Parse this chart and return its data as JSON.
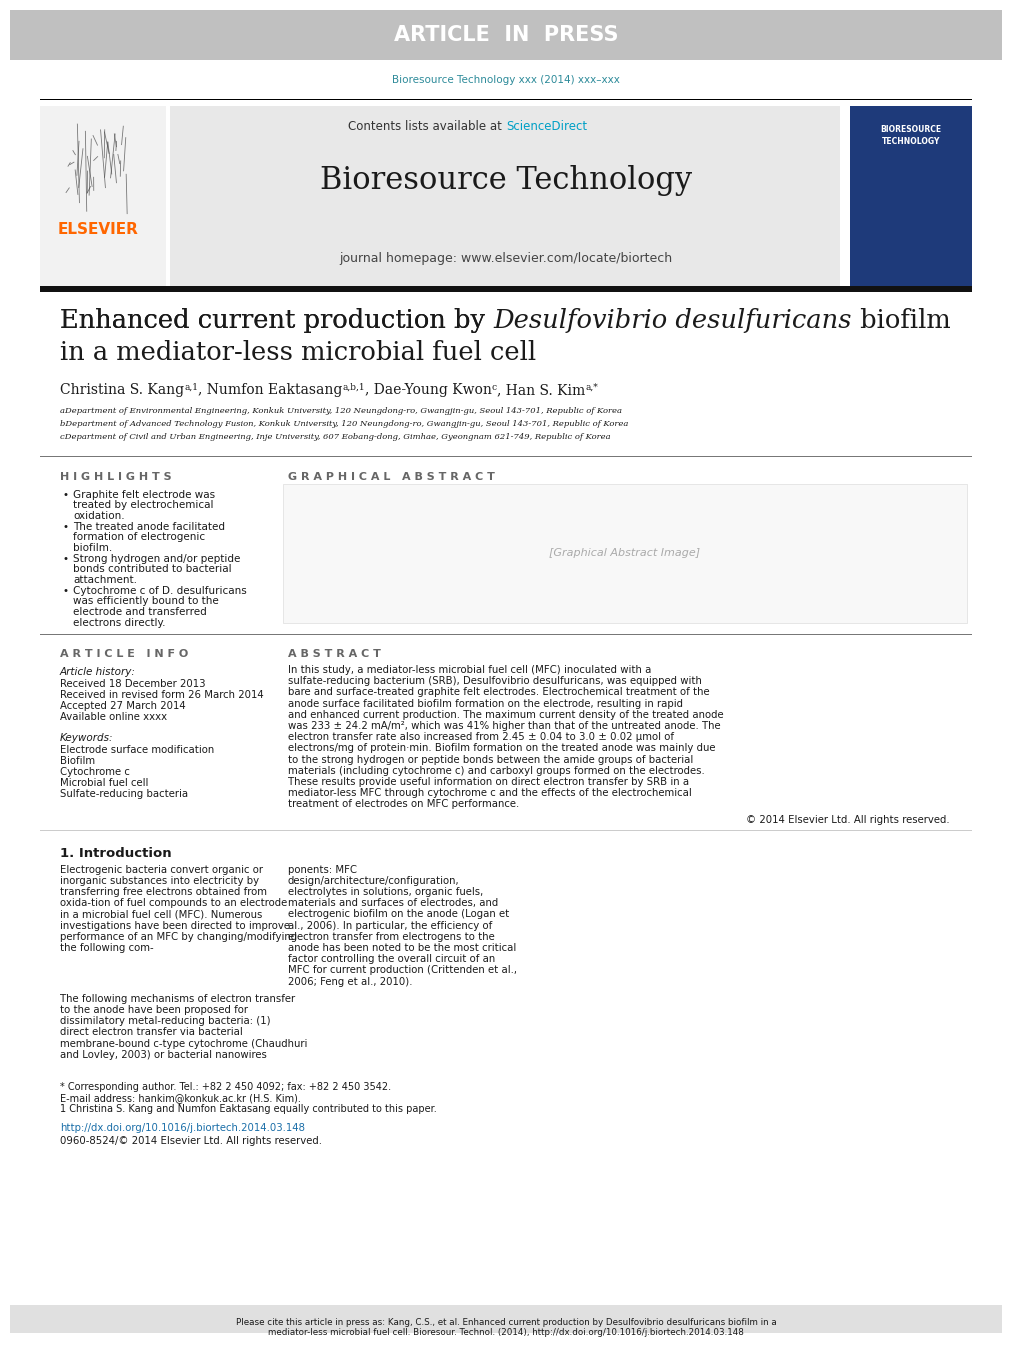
{
  "fig_width": 9.92,
  "fig_height": 13.23,
  "dpi": 100,
  "bg_color": "#ffffff",
  "header_bar_color": "#c0c0c0",
  "header_text": "ARTICLE  IN  PRESS",
  "header_text_color": "#ffffff",
  "journal_ref_color": "#2e8b9a",
  "journal_ref": "Bioresource Technology xxx (2014) xxx–xxx",
  "header_journal_box_color": "#e8e8e8",
  "contents_line": "Contents lists available at ",
  "sciencedirect_text": "ScienceDirect",
  "sciencedirect_color": "#00a0c6",
  "journal_name": "Bioresource Technology",
  "journal_homepage_line": "journal homepage: www.elsevier.com/locate/biortech",
  "elsevier_color": "#ff6600",
  "black_bar_color": "#111111",
  "article_title_line1": "Enhanced current production by ",
  "article_title_italic": "Desulfovibrio desulfuricans",
  "article_title_line1_end": " biofilm",
  "article_title_line2": "in a mediator-less microbial fuel cell",
  "affil_a": "aDepartment of Environmental Engineering, Konkuk University, 120 Neungdong-ro, Gwangjin-gu, Seoul 143-701, Republic of Korea",
  "affil_b": "bDepartment of Advanced Technology Fusion, Konkuk University, 120 Neungdong-ro, Gwangjin-gu, Seoul 143-701, Republic of Korea",
  "affil_c": "cDepartment of Civil and Urban Engineering, Inje University, 607 Eobang-dong, Gimhae, Gyeongnam 621-749, Republic of Korea",
  "highlights_title": "H I G H L I G H T S",
  "highlights": [
    "Graphite felt electrode was treated by electrochemical oxidation.",
    "The treated anode facilitated formation of electrogenic biofilm.",
    "Strong hydrogen and/or peptide bonds contributed to bacterial attachment.",
    "Cytochrome c of D. desulfuricans was efficiently bound to the electrode and transferred electrons directly."
  ],
  "graphical_abstract_title": "G R A P H I C A L   A B S T R A C T",
  "article_info_title": "A R T I C L E   I N F O",
  "article_history_title": "Article history:",
  "received": "Received 18 December 2013",
  "revised": "Received in revised form 26 March 2014",
  "accepted": "Accepted 27 March 2014",
  "available": "Available online xxxx",
  "keywords_title": "Keywords:",
  "keywords": [
    "Electrode surface modification",
    "Biofilm",
    "Cytochrome c",
    "Microbial fuel cell",
    "Sulfate-reducing bacteria"
  ],
  "abstract_title": "A B S T R A C T",
  "abstract_text": "In this study, a mediator-less microbial fuel cell (MFC) inoculated with a sulfate-reducing bacterium (SRB), Desulfovibrio desulfuricans, was equipped with bare and surface-treated graphite felt electrodes. Electrochemical treatment of the anode surface facilitated biofilm formation on the electrode, resulting in rapid and enhanced current production. The maximum current density of the treated anode was 233 ± 24.2 mA/m², which was 41% higher than that of the untreated anode. The electron transfer rate also increased from 2.45 ± 0.04 to 3.0 ± 0.02 μmol of electrons/mg of protein·min. Biofilm formation on the treated anode was mainly due to the strong hydrogen or peptide bonds between the amide groups of bacterial materials (including cytochrome c) and carboxyl groups formed on the electrodes. These results provide useful information on direct electron transfer by SRB in a mediator-less MFC through cytochrome c and the effects of the electrochemical treatment of electrodes on MFC performance.",
  "abstract_copyright": "© 2014 Elsevier Ltd. All rights reserved.",
  "intro_title": "1. Introduction",
  "intro_text1": "Electrogenic bacteria convert organic or inorganic substances into electricity by transferring free electrons obtained from oxida-tion of fuel compounds to an electrode in a microbial fuel cell (MFC). Numerous investigations have been directed to improve performance of an MFC by changing/modifying the following com-",
  "intro_text2": "ponents: MFC design/architecture/configuration, electrolytes in solutions, organic fuels, materials and surfaces of electrodes, and electrogenic biofilm on the anode (Logan et al., 2006). In particular, the efficiency of electron transfer from electrogens to the anode has been noted to be the most critical factor controlling the overall circuit of an MFC for current production (Crittenden et al., 2006; Feng et al., 2010).",
  "intro_text3": "The following mechanisms of electron transfer to the anode have been proposed for dissimilatory metal-reducing bacteria: (1) direct electron transfer via bacterial membrane-bound c-type cytochrome (Chaudhuri and Lovley, 2003) or bacterial nanowires",
  "footnote_star": "* Corresponding author. Tel.: +82 2 450 4092; fax: +82 2 450 3542.",
  "footnote_email": "E-mail address: hankim@konkuk.ac.kr (H.S. Kim).",
  "footnote_1": "1 Christina S. Kang and Numfon Eaktasang equally contributed to this paper.",
  "doi_text": "http://dx.doi.org/10.1016/j.biortech.2014.03.148",
  "doi_color": "#1a6ea8",
  "issn_text": "0960-8524/© 2014 Elsevier Ltd. All rights reserved.",
  "bottom_bar_color": "#e0e0e0",
  "bottom_cite": "Please cite this article in press as: Kang, C.S., et al. Enhanced current production by Desulfovibrio desulfuricans biofilm in a mediator-less microbial fuel cell. Bioresour. Technol. (2014), http://dx.doi.org/10.1016/j.biortech.2014.03.148"
}
